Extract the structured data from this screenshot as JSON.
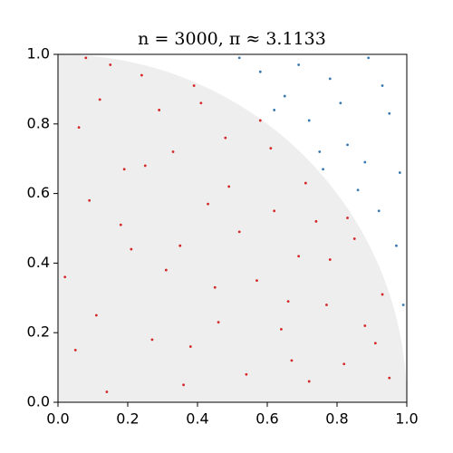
{
  "chart_data": {
    "type": "scatter",
    "title": "n = 3000, π ≈ 3.1133",
    "xlim": [
      0,
      1
    ],
    "ylim": [
      0,
      1
    ],
    "xticks": [
      {
        "value": 0,
        "label": "0.0"
      },
      0.2,
      0.4,
      0.6,
      0.8,
      {
        "value": 1,
        "label": "1.0"
      }
    ],
    "yticks": [
      {
        "value": 0,
        "label": "0.0"
      },
      0.2,
      0.4,
      0.6,
      0.8,
      {
        "value": 1,
        "label": "1.0"
      }
    ],
    "region_color": "#eeeeee",
    "series": [
      {
        "color": "#d62728",
        "x": [
          0.12,
          0.45,
          0.78,
          0.33,
          0.05,
          0.62,
          0.21,
          0.88,
          0.54,
          0.39,
          0.71,
          0.15,
          0.93,
          0.27,
          0.66,
          0.48,
          0.09,
          0.82,
          0.36,
          0.58,
          0.02,
          0.74,
          0.19,
          0.43,
          0.67,
          0.31,
          0.85,
          0.11,
          0.52,
          0.95,
          0.24,
          0.61,
          0.38,
          0.77,
          0.06,
          0.49,
          0.69,
          0.14,
          0.29,
          0.57,
          0.41,
          0.83,
          0.18,
          0.64,
          0.35,
          0.72,
          0.08,
          0.46,
          0.91,
          0.25
        ],
        "values": [
          0.87,
          0.33,
          0.41,
          0.72,
          0.15,
          0.55,
          0.44,
          0.22,
          0.08,
          0.91,
          0.63,
          0.97,
          0.31,
          0.18,
          0.29,
          0.76,
          0.58,
          0.11,
          0.05,
          0.81,
          0.36,
          0.52,
          0.67,
          0.57,
          0.12,
          0.38,
          0.47,
          0.25,
          0.49,
          0.07,
          0.94,
          0.73,
          0.16,
          0.28,
          0.79,
          0.62,
          0.42,
          0.03,
          0.84,
          0.35,
          0.86,
          0.53,
          0.51,
          0.21,
          0.45,
          0.06,
          0.99,
          0.23,
          0.17,
          0.68
        ]
      },
      {
        "color": "#3a78b0",
        "x": [
          0.65,
          0.72,
          0.83,
          0.92,
          0.97,
          0.58,
          0.78,
          0.88,
          0.95,
          0.69,
          0.86,
          0.99,
          0.52,
          0.75,
          0.93,
          0.81,
          0.98,
          0.62,
          0.89,
          0.76
        ],
        "values": [
          0.88,
          0.81,
          0.74,
          0.55,
          0.45,
          0.95,
          0.93,
          0.69,
          0.83,
          0.97,
          0.61,
          0.28,
          0.99,
          0.72,
          0.91,
          0.86,
          0.66,
          0.84,
          0.99,
          0.67
        ]
      }
    ]
  }
}
